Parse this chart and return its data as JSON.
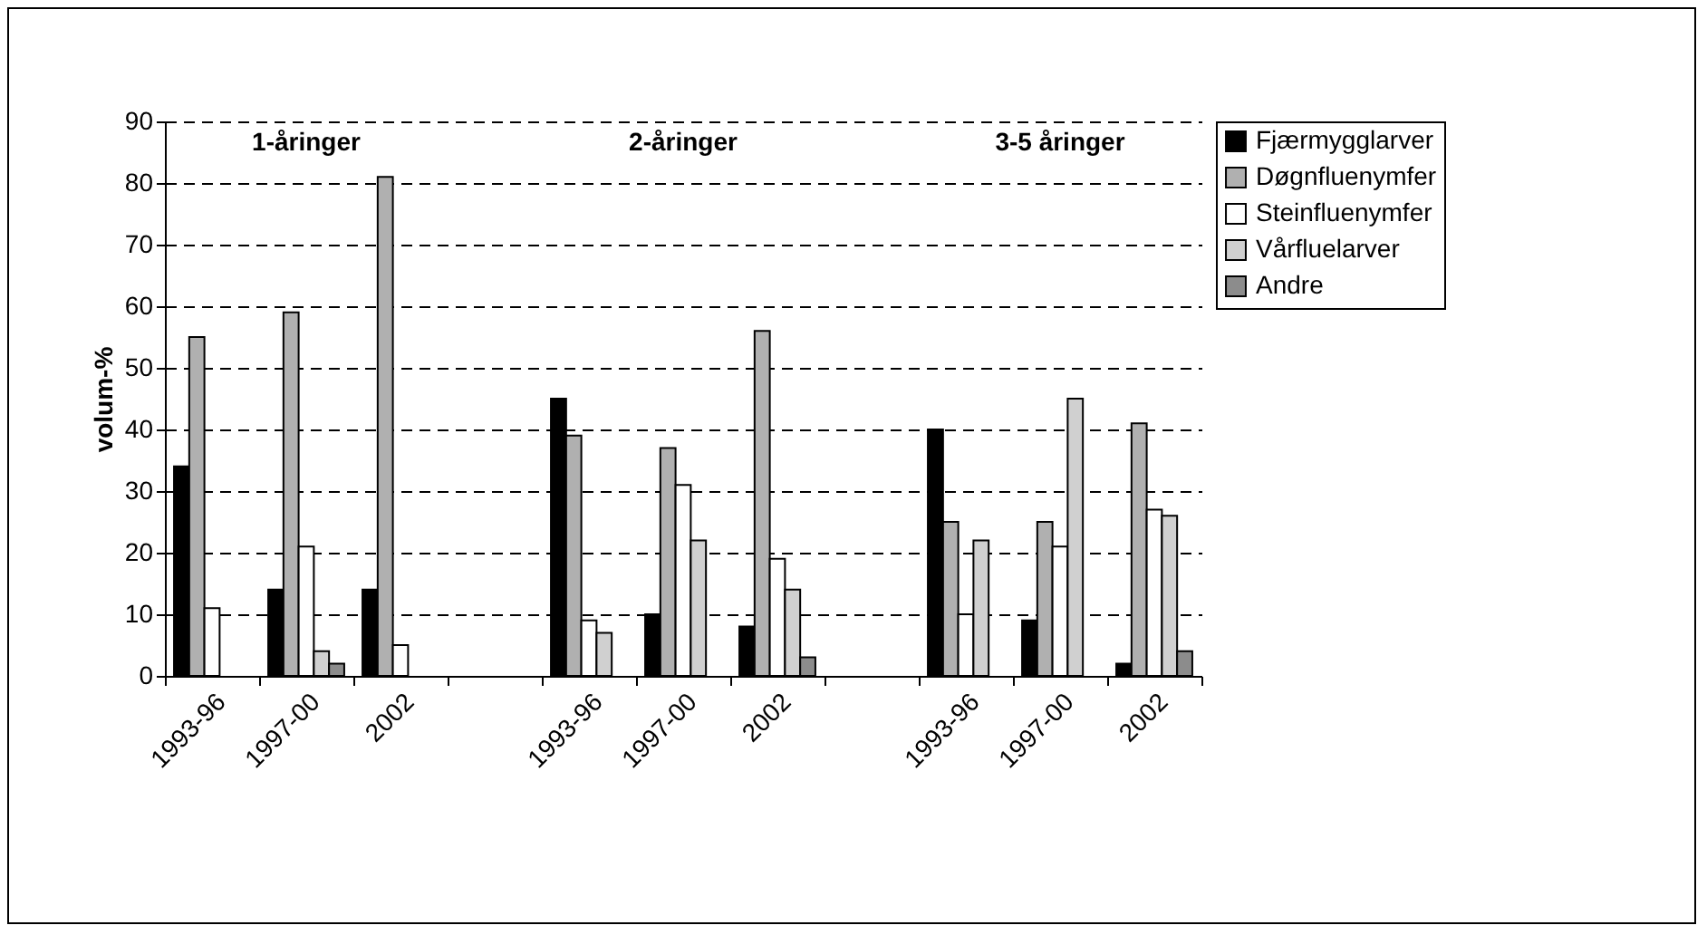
{
  "chart_data": {
    "type": "bar",
    "ylabel": "volum-%",
    "categories": [
      "1993-96",
      "1997-00",
      "2002",
      null,
      "1993-96",
      "1997-00",
      "2002",
      null,
      "1993-96",
      "1997-00",
      "2002"
    ],
    "series": [
      {
        "name": "Fjærmygglarver",
        "color": "#000000",
        "values": [
          34,
          14,
          14,
          null,
          45,
          10,
          8,
          null,
          40,
          9,
          2
        ]
      },
      {
        "name": "Døgnfluenymfer",
        "color": "#b0b0b0",
        "values": [
          55,
          59,
          81,
          null,
          39,
          37,
          56,
          null,
          25,
          25,
          41
        ]
      },
      {
        "name": "Steinfluenymfer",
        "color": "#ffffff",
        "values": [
          11,
          21,
          5,
          null,
          9,
          31,
          19,
          null,
          10,
          21,
          27
        ]
      },
      {
        "name": "Vårfluelarver",
        "color": "#d0d0d0",
        "values": [
          null,
          4,
          null,
          null,
          7,
          22,
          14,
          null,
          22,
          45,
          26
        ]
      },
      {
        "name": "Andre",
        "color": "#8c8c8c",
        "values": [
          null,
          2,
          null,
          null,
          null,
          null,
          3,
          null,
          null,
          null,
          4
        ]
      }
    ],
    "annotations": [
      "1-åringer",
      "2-åringer",
      "3-5 åringer"
    ],
    "ylim": [
      0,
      90
    ],
    "yticks": [
      0,
      10,
      20,
      30,
      40,
      50,
      60,
      70,
      80,
      90
    ],
    "grid": "y",
    "legend": "right"
  }
}
